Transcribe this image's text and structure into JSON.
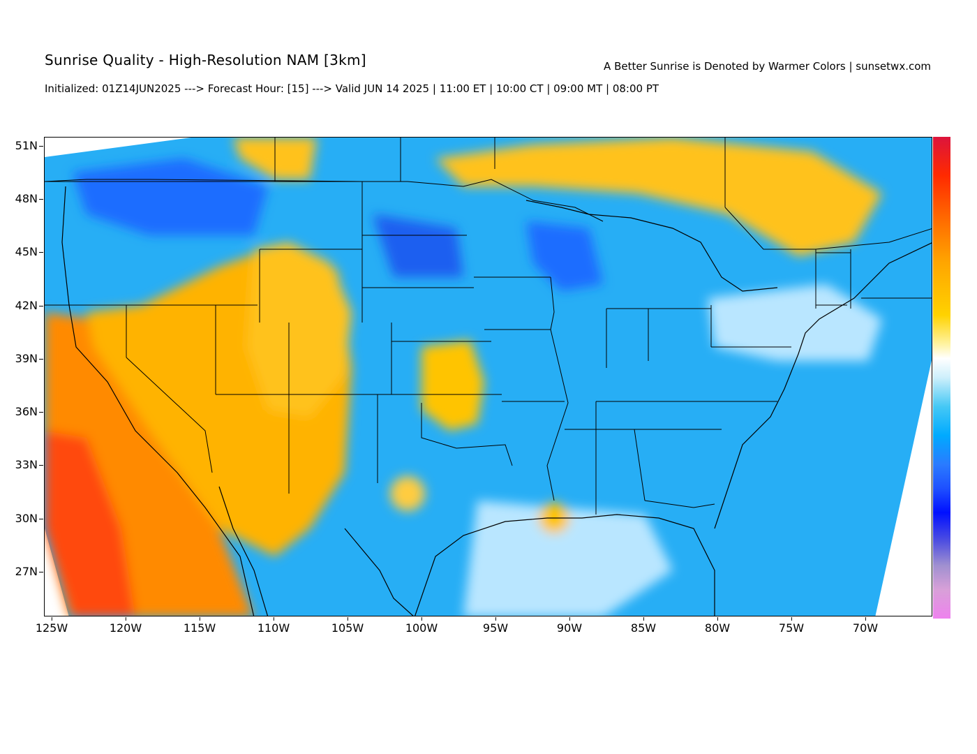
{
  "header": {
    "title": "Sunrise Quality - High-Resolution NAM [3km]",
    "credit": "A Better Sunrise is Denoted by Warmer Colors | sunsetwx.com",
    "subtitle": "Initialized: 01Z14JUN2025 ---> Forecast Hour: [15] ---> Valid JUN 14 2025 | 11:00 ET | 10:00 CT | 09:00 MT | 08:00 PT"
  },
  "axes": {
    "latitude_labels": [
      "51N",
      "48N",
      "45N",
      "42N",
      "39N",
      "36N",
      "33N",
      "30N",
      "27N"
    ],
    "longitude_labels": [
      "125W",
      "120W",
      "115W",
      "110W",
      "105W",
      "100W",
      "95W",
      "90W",
      "85W",
      "80W",
      "75W",
      "70W"
    ]
  },
  "colorbar": {
    "colors": [
      "#dc143c",
      "#ff6a00",
      "#ffa500",
      "#ffd200",
      "#ffffff",
      "#45c8f5",
      "#00aaff",
      "#2a7bff",
      "#0010ff",
      "#d8a0d8",
      "#ee82ee"
    ]
  },
  "map": {
    "colors": {
      "warm_high": "#ff4500",
      "warm": "#ffa500",
      "warm_light": "#ffd34d",
      "neutral": "#ffffff",
      "cool_light": "#9fdcff",
      "cool": "#27aef5",
      "cool_deep": "#1a6dff",
      "boundary": "#000000"
    }
  }
}
